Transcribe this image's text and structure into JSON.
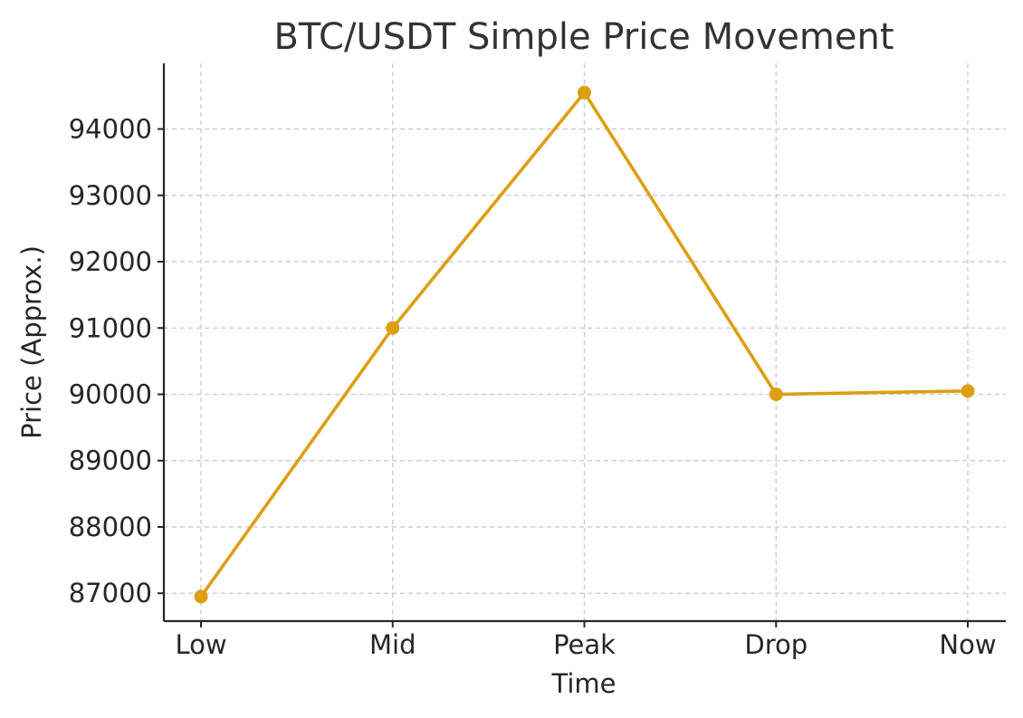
{
  "chart_data": {
    "type": "line",
    "title": "BTC/USDT Simple Price Movement",
    "xlabel": "Time",
    "ylabel": "Price (Approx.)",
    "categories": [
      "Low",
      "Mid",
      "Peak",
      "Drop",
      "Now"
    ],
    "series": [
      {
        "name": "BTC/USDT",
        "values": [
          86950,
          91000,
          94550,
          90000,
          90050
        ]
      }
    ],
    "ylim": [
      86580,
      94990
    ],
    "yticks": [
      87000,
      88000,
      89000,
      90000,
      91000,
      92000,
      93000,
      94000
    ],
    "ytick_labels": [
      "87000",
      "88000",
      "89000",
      "90000",
      "91000",
      "92000",
      "93000",
      "94000"
    ],
    "grid": true,
    "colors": {
      "line": "#dd9e12",
      "marker": "#dd9e12"
    }
  }
}
